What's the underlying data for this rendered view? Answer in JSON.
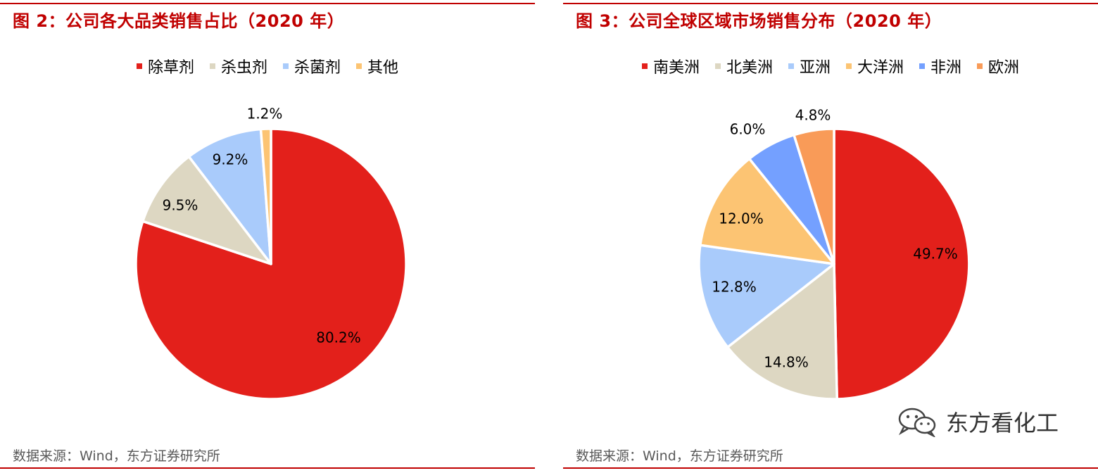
{
  "figures": [
    {
      "title": "图 2：公司各大品类销售占比（2020 年）",
      "source": "数据来源：Wind，东方证券研究所"
    },
    {
      "title": "图 3：公司全球区域市场销售分布（2020 年）",
      "source": "数据来源：Wind，东方证券研究所"
    }
  ],
  "watermark": {
    "text": "东方看化工",
    "icon": "wechat-icon"
  },
  "chart_data": [
    {
      "type": "pie",
      "title": "图 2：公司各大品类销售占比（2020 年）",
      "legend_position": "top",
      "slices": [
        {
          "name": "除草剂",
          "value": 80.2,
          "label": "80.2%",
          "color": "#e3201b"
        },
        {
          "name": "杀虫剂",
          "value": 9.5,
          "label": "9.5%",
          "color": "#ddd7c2"
        },
        {
          "name": "杀菌剂",
          "value": 9.2,
          "label": "9.2%",
          "color": "#a9cbfb"
        },
        {
          "name": "其他",
          "value": 1.2,
          "label": "1.2%",
          "color": "#fcc473"
        }
      ]
    },
    {
      "type": "pie",
      "title": "图 3：公司全球区域市场销售分布（2020 年）",
      "legend_position": "top",
      "slices": [
        {
          "name": "南美洲",
          "value": 49.7,
          "label": "49.7%",
          "color": "#e3201b"
        },
        {
          "name": "北美洲",
          "value": 14.8,
          "label": "14.8%",
          "color": "#ddd7c2"
        },
        {
          "name": "亚洲",
          "value": 12.8,
          "label": "12.8%",
          "color": "#a9cbfb"
        },
        {
          "name": "大洋洲",
          "value": 12.0,
          "label": "12.0%",
          "color": "#fcc473"
        },
        {
          "name": "非洲",
          "value": 6.0,
          "label": "6.0%",
          "color": "#74a0ff"
        },
        {
          "name": "欧洲",
          "value": 4.8,
          "label": "4.8%",
          "color": "#f99b58"
        }
      ]
    }
  ]
}
